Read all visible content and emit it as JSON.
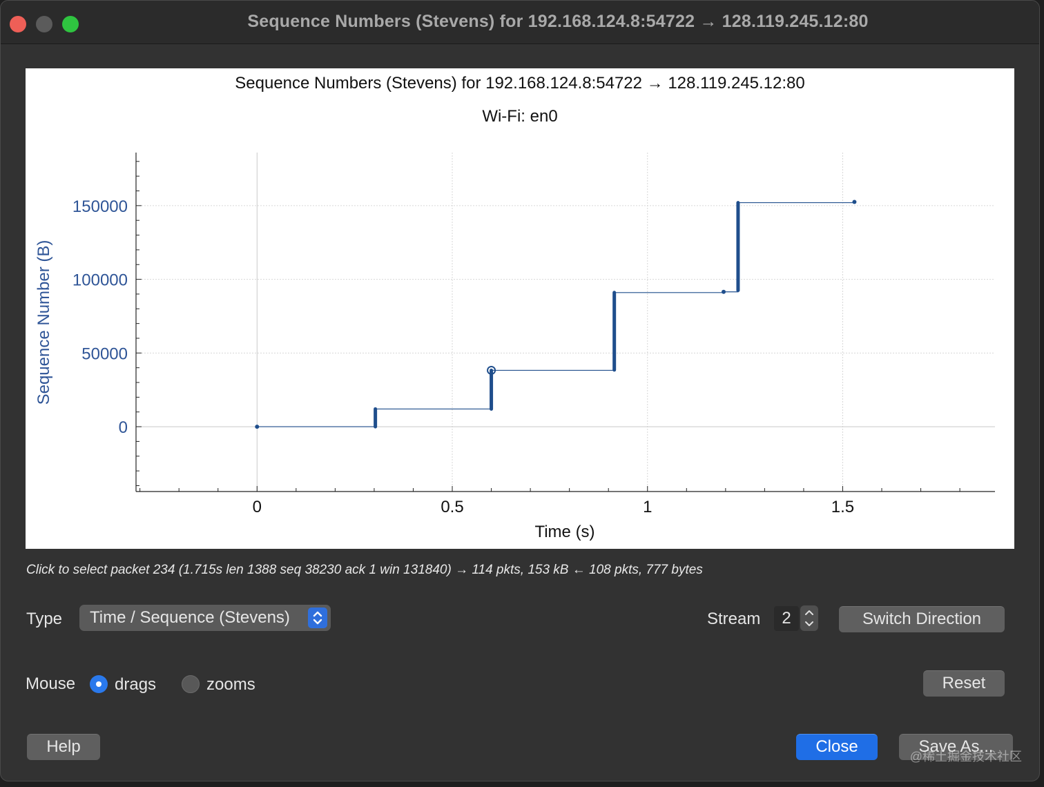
{
  "window": {
    "title": "Sequence Numbers (Stevens) for 192.168.124.8:54722 → 128.119.245.12:80"
  },
  "chart_data": {
    "type": "scatter",
    "title": "Sequence Numbers (Stevens) for 192.168.124.8:54722 → 128.119.245.12:80",
    "subtitle": "Wi-Fi: en0",
    "xlabel": "Time (s)",
    "ylabel": "Sequence Number (B)",
    "xlim": [
      -0.31,
      1.89
    ],
    "ylim": [
      -44000,
      186000
    ],
    "xticks": [
      {
        "value": 0,
        "label": "0"
      },
      {
        "value": 0.5,
        "label": "0.5"
      },
      {
        "value": 1,
        "label": "1"
      },
      {
        "value": 1.5,
        "label": "1.5"
      }
    ],
    "yticks": [
      {
        "value": 0,
        "label": "0"
      },
      {
        "value": 50000,
        "label": "50000"
      },
      {
        "value": 100000,
        "label": "100000"
      },
      {
        "value": 150000,
        "label": "150000"
      }
    ],
    "grid": true,
    "series_color": "#1f4e8c",
    "selected_point": {
      "x": 0.6,
      "y": 38230
    },
    "bursts": [
      {
        "x": 0.0,
        "y_start": 0,
        "y_end": 0
      },
      {
        "x": 0.303,
        "y_start": 0,
        "y_end": 12000
      },
      {
        "x": 0.6,
        "y_start": 12000,
        "y_end": 38230
      },
      {
        "x": 0.915,
        "y_start": 38500,
        "y_end": 91000
      },
      {
        "x": 1.195,
        "y_start": 91500,
        "y_end": 91500
      },
      {
        "x": 1.232,
        "y_start": 92500,
        "y_end": 152000
      },
      {
        "x": 1.53,
        "y_start": 152500,
        "y_end": 152500
      }
    ]
  },
  "status": {
    "hint": "Click to select packet 234 (1.715s len 1388 seq 38230 ack 1 win 131840) → 114 pkts, 153 kB ← 108 pkts, 777 bytes"
  },
  "controls": {
    "type_label": "Type",
    "type_value": "Time / Sequence (Stevens)",
    "stream_label": "Stream",
    "stream_value": "2",
    "switch_direction": "Switch Direction",
    "mouse_label": "Mouse",
    "mouse_drags": "drags",
    "mouse_zooms": "zooms",
    "reset": "Reset",
    "help": "Help",
    "close": "Close",
    "save_as": "Save As..."
  },
  "watermark": "@稀土掘金技术社区"
}
